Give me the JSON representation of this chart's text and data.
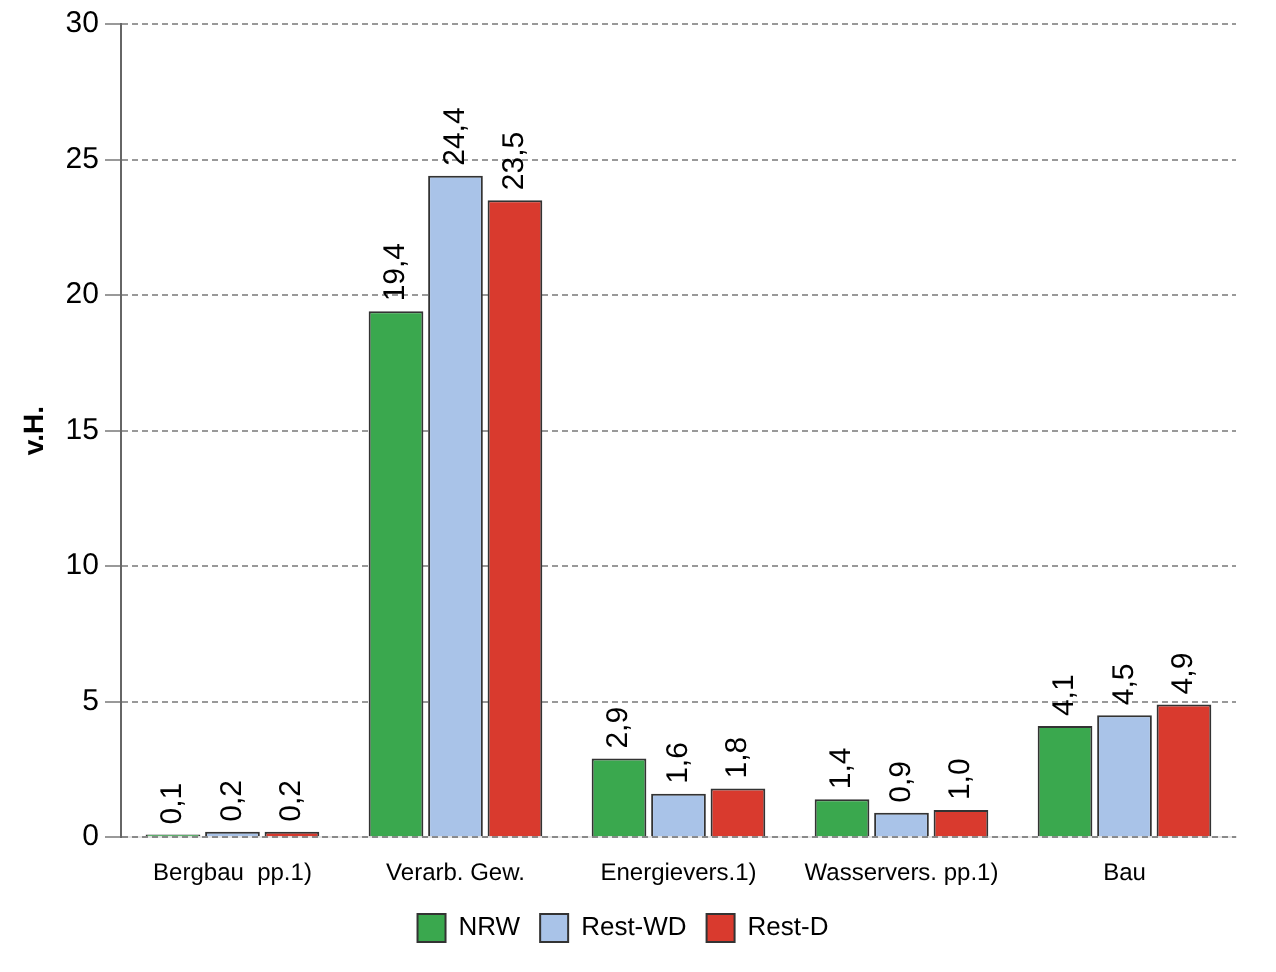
{
  "chart_data": {
    "type": "bar",
    "ylabel": "v.H.",
    "categories": [
      "Bergbau  pp.1)",
      "Verarb. Gew.",
      "Energievers.1)",
      "Wasservers. pp.1)",
      "Bau"
    ],
    "series": [
      {
        "name": "NRW",
        "color": "#3aa84e",
        "values": [
          0.1,
          19.4,
          2.9,
          1.4,
          4.1
        ],
        "value_labels": [
          "0,1",
          "19,4",
          "2,9",
          "1,4",
          "4,1"
        ]
      },
      {
        "name": "Rest-WD",
        "color": "#a9c3e8",
        "values": [
          0.2,
          24.4,
          1.6,
          0.9,
          4.5
        ],
        "value_labels": [
          "0,2",
          "24,4",
          "1,6",
          "0,9",
          "4,5"
        ]
      },
      {
        "name": "Rest-D",
        "color": "#d93a2e",
        "values": [
          0.2,
          23.5,
          1.8,
          1.0,
          4.9
        ],
        "value_labels": [
          "0,2",
          "23,5",
          "1,8",
          "1,0",
          "4,9"
        ]
      }
    ],
    "ylim": [
      0,
      30
    ],
    "yticks": [
      0,
      5,
      10,
      15,
      20,
      25,
      30
    ],
    "grid": "y",
    "legend": "bottom"
  }
}
